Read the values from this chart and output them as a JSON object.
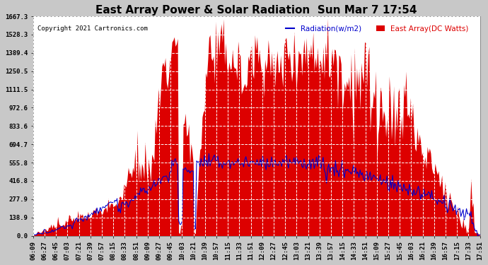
{
  "title": "East Array Power & Solar Radiation  Sun Mar 7 17:54",
  "copyright": "Copyright 2021 Cartronics.com",
  "legend_radiation": "Radiation(w/m2)",
  "legend_east_array": "East Array(DC Watts)",
  "yticks": [
    0.0,
    138.9,
    277.9,
    416.8,
    555.8,
    694.7,
    833.6,
    972.6,
    1111.5,
    1250.5,
    1389.4,
    1528.3,
    1667.3
  ],
  "ymax": 1667.3,
  "ymin": 0.0,
  "bg_color": "#c8c8c8",
  "plot_bg_color": "#ffffff",
  "grid_color": "#999999",
  "red_color": "#dd0000",
  "blue_color": "#0000cc",
  "title_fontsize": 11,
  "tick_fontsize": 6.5,
  "xtick_labels": [
    "06:09",
    "06:27",
    "06:45",
    "07:03",
    "07:21",
    "07:39",
    "07:57",
    "08:15",
    "08:33",
    "08:51",
    "09:09",
    "09:27",
    "09:45",
    "10:03",
    "10:21",
    "10:39",
    "10:57",
    "11:15",
    "11:33",
    "11:51",
    "12:09",
    "12:27",
    "12:45",
    "13:03",
    "13:21",
    "13:39",
    "13:57",
    "14:15",
    "14:33",
    "14:51",
    "15:09",
    "15:27",
    "15:45",
    "16:03",
    "16:21",
    "16:39",
    "16:57",
    "17:15",
    "17:33",
    "17:51"
  ]
}
